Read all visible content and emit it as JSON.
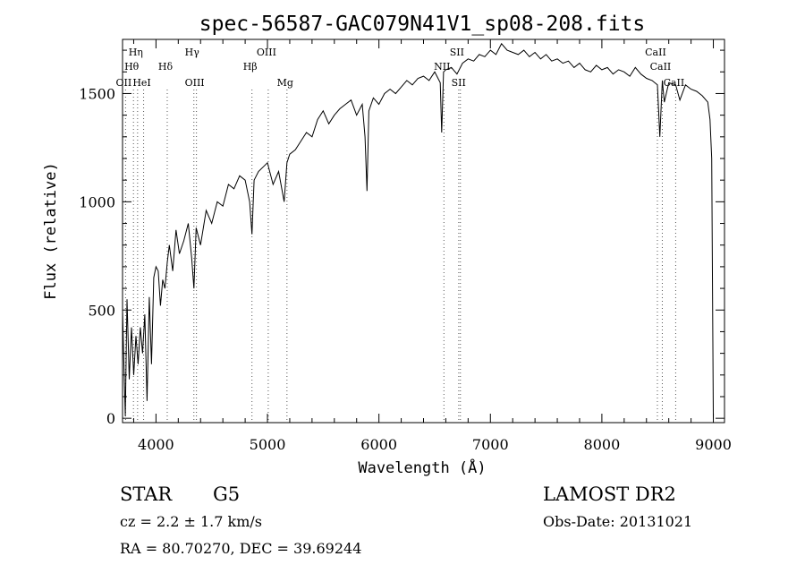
{
  "chart_data": {
    "type": "line",
    "title": "spec-56587-GAC079N41V1_sp08-208.fits",
    "xlabel": "Wavelength (Å)",
    "ylabel": "Flux (relative)",
    "xlim": [
      3700,
      9100
    ],
    "ylim": [
      -20,
      1750
    ],
    "x_ticks": [
      4000,
      5000,
      6000,
      7000,
      8000,
      9000
    ],
    "y_ticks": [
      0,
      500,
      1000,
      1500
    ],
    "grid": false,
    "series": [
      {
        "x": [
          3700,
          3710,
          3725,
          3740,
          3760,
          3780,
          3800,
          3820,
          3840,
          3860,
          3880,
          3900,
          3920,
          3940,
          3960,
          3980,
          4000,
          4020,
          4040,
          4060,
          4080,
          4101,
          4120,
          4150,
          4180,
          4210,
          4250,
          4290,
          4320,
          4340,
          4360,
          4400,
          4450,
          4500,
          4550,
          4600,
          4650,
          4700,
          4750,
          4800,
          4840,
          4861,
          4880,
          4920,
          4960,
          5000,
          5050,
          5100,
          5150,
          5175,
          5200,
          5250,
          5300,
          5350,
          5400,
          5450,
          5500,
          5550,
          5600,
          5650,
          5700,
          5750,
          5800,
          5850,
          5875,
          5893,
          5910,
          5950,
          6000,
          6050,
          6100,
          6150,
          6200,
          6250,
          6300,
          6350,
          6400,
          6450,
          6500,
          6550,
          6563,
          6580,
          6600,
          6650,
          6700,
          6750,
          6800,
          6850,
          6900,
          6950,
          7000,
          7050,
          7100,
          7150,
          7200,
          7250,
          7300,
          7350,
          7400,
          7450,
          7500,
          7550,
          7600,
          7650,
          7700,
          7750,
          7800,
          7850,
          7900,
          7950,
          8000,
          8050,
          8100,
          8150,
          8200,
          8250,
          8300,
          8350,
          8400,
          8450,
          8498,
          8520,
          8542,
          8560,
          8600,
          8662,
          8700,
          8750,
          8800,
          8850,
          8900,
          8950,
          8970,
          8985,
          9000
        ],
        "y": [
          500,
          300,
          10,
          550,
          180,
          420,
          200,
          380,
          250,
          420,
          300,
          480,
          80,
          560,
          250,
          650,
          700,
          680,
          520,
          640,
          600,
          720,
          800,
          680,
          870,
          760,
          820,
          900,
          740,
          600,
          880,
          800,
          960,
          900,
          1000,
          980,
          1080,
          1060,
          1120,
          1100,
          1000,
          850,
          1100,
          1140,
          1160,
          1180,
          1080,
          1140,
          1000,
          1180,
          1220,
          1240,
          1280,
          1320,
          1300,
          1380,
          1420,
          1360,
          1400,
          1430,
          1450,
          1470,
          1400,
          1450,
          1300,
          1050,
          1420,
          1480,
          1450,
          1500,
          1520,
          1500,
          1530,
          1560,
          1540,
          1570,
          1580,
          1560,
          1600,
          1550,
          1320,
          1600,
          1610,
          1620,
          1590,
          1640,
          1660,
          1650,
          1680,
          1670,
          1700,
          1680,
          1730,
          1700,
          1690,
          1680,
          1700,
          1670,
          1690,
          1660,
          1680,
          1650,
          1660,
          1640,
          1650,
          1620,
          1640,
          1610,
          1600,
          1630,
          1610,
          1620,
          1590,
          1610,
          1600,
          1580,
          1620,
          1590,
          1570,
          1560,
          1540,
          1300,
          1560,
          1460,
          1550,
          1540,
          1470,
          1540,
          1520,
          1510,
          1490,
          1460,
          1380,
          1200,
          0
        ]
      }
    ],
    "lines": [
      {
        "name": "Hη",
        "x": 3835
      },
      {
        "name": "Hθ",
        "x": 3798
      },
      {
        "name": "OII",
        "x": 3727
      },
      {
        "name": "HeI",
        "x": 3889
      },
      {
        "name": "Hδ",
        "x": 4101
      },
      {
        "name": "Hγ",
        "x": 4340
      },
      {
        "name": "OIII",
        "x": 4363
      },
      {
        "name": "Hβ",
        "x": 4861
      },
      {
        "name": "OIII",
        "x": 5007
      },
      {
        "name": "Mg",
        "x": 5175
      },
      {
        "name": "NII",
        "x": 6583
      },
      {
        "name": "SII",
        "x": 6716
      },
      {
        "name": "SII",
        "x": 6731
      },
      {
        "name": "CaII",
        "x": 8498
      },
      {
        "name": "CaII",
        "x": 8542
      },
      {
        "name": "CaII",
        "x": 8662
      }
    ]
  },
  "info": {
    "object_type": "STAR",
    "object_class": "G5",
    "survey": "LAMOST DR2",
    "redshift": "cz = 2.2 ± 1.7 km/s",
    "obs_date": "Obs-Date: 20131021",
    "coords": "RA =  80.70270, DEC =  39.69244"
  }
}
